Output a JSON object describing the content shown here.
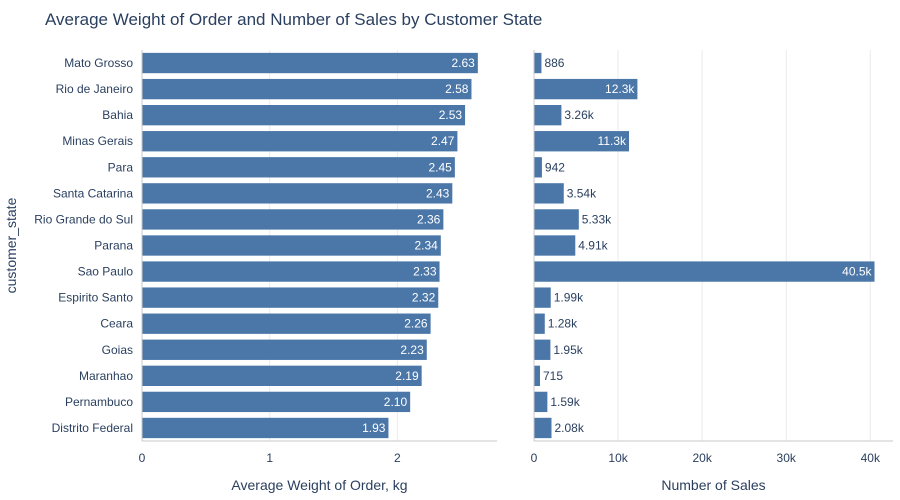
{
  "title": "Average Weight of Order and Number of Sales by Customer State",
  "chart_data": [
    {
      "type": "bar",
      "orientation": "horizontal",
      "categories": [
        "Mato Grosso",
        "Rio de Janeiro",
        "Bahia",
        "Minas Gerais",
        "Para",
        "Santa Catarina",
        "Rio Grande do Sul",
        "Parana",
        "Sao Paulo",
        "Espirito Santo",
        "Ceara",
        "Goias",
        "Maranhao",
        "Pernambuco",
        "Distrito Federal"
      ],
      "values": [
        2.63,
        2.58,
        2.53,
        2.47,
        2.45,
        2.43,
        2.36,
        2.34,
        2.33,
        2.32,
        2.26,
        2.23,
        2.19,
        2.1,
        1.93
      ],
      "labels": [
        "2.63",
        "2.58",
        "2.53",
        "2.47",
        "2.45",
        "2.43",
        "2.36",
        "2.34",
        "2.33",
        "2.32",
        "2.26",
        "2.23",
        "2.19",
        "2.10",
        "1.93"
      ],
      "xlabel": "Average Weight of Order, kg",
      "ylabel": "customer_state",
      "xlim": [
        0,
        2.78
      ],
      "xticks": [
        0,
        1,
        2
      ],
      "xtick_labels": [
        "0",
        "1",
        "2"
      ],
      "grid": true,
      "color": "#4a76a8"
    },
    {
      "type": "bar",
      "orientation": "horizontal",
      "categories": [
        "Mato Grosso",
        "Rio de Janeiro",
        "Bahia",
        "Minas Gerais",
        "Para",
        "Santa Catarina",
        "Rio Grande do Sul",
        "Parana",
        "Sao Paulo",
        "Espirito Santo",
        "Ceara",
        "Goias",
        "Maranhao",
        "Pernambuco",
        "Distrito Federal"
      ],
      "values": [
        886,
        12300,
        3260,
        11300,
        942,
        3540,
        5330,
        4910,
        40500,
        1990,
        1280,
        1950,
        715,
        1590,
        2080
      ],
      "labels": [
        "886",
        "12.3k",
        "3.26k",
        "11.3k",
        "942",
        "3.54k",
        "5.33k",
        "4.91k",
        "40.5k",
        "1.99k",
        "1.28k",
        "1.95k",
        "715",
        "1.59k",
        "2.08k"
      ],
      "xlabel": "Number of Sales",
      "xlim": [
        0,
        42700
      ],
      "xticks": [
        0,
        10000,
        20000,
        30000,
        40000
      ],
      "xtick_labels": [
        "0",
        "10k",
        "20k",
        "30k",
        "40k"
      ],
      "grid": true,
      "color": "#4a76a8"
    }
  ]
}
